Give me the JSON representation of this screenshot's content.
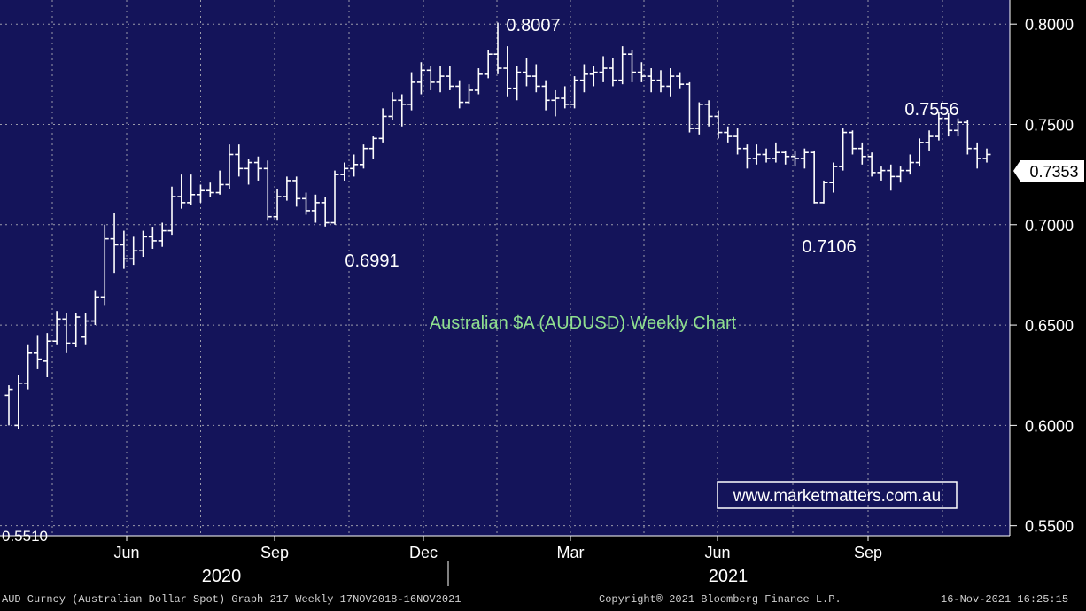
{
  "colors": {
    "plot_bg": "#14145a",
    "axis_bg": "#000000",
    "bars": "#ffffff",
    "grid": "#9a9aaa",
    "title": "#8fe08f",
    "watermark_border": "#ffffff",
    "last_label_bg": "#ffffff",
    "last_label_text": "#000000"
  },
  "chart_data": {
    "type": "ohlc",
    "title": "Australian $A (AUDUSD) Weekly Chart",
    "grid": true,
    "y_tick_labels": [
      "0.8000",
      "0.7500",
      "0.7000",
      "0.6500",
      "0.6000",
      "0.5500"
    ],
    "y_ticks": [
      0.8,
      0.75,
      0.7,
      0.65,
      0.6,
      0.55
    ],
    "ylim": [
      0.545,
      0.812
    ],
    "x_tick_labels": [
      "Jun",
      "Sep",
      "Dec",
      "Mar",
      "Jun",
      "Sep"
    ],
    "year_labels": [
      "2020",
      "2021"
    ],
    "last_price": "0.7353",
    "low_edge_label": "0.5510",
    "annotations": [
      {
        "text": "0.8007",
        "value": 0.8007
      },
      {
        "text": "0.7556",
        "value": 0.7556
      },
      {
        "text": "0.6991",
        "value": 0.6991
      },
      {
        "text": "0.7106",
        "value": 0.7106
      }
    ],
    "weeks": [
      {
        "o": 0.615,
        "h": 0.62,
        "l": 0.6,
        "c": 0.618
      },
      {
        "o": 0.6,
        "h": 0.625,
        "l": 0.598,
        "c": 0.621
      },
      {
        "o": 0.621,
        "h": 0.64,
        "l": 0.618,
        "c": 0.636
      },
      {
        "o": 0.636,
        "h": 0.645,
        "l": 0.628,
        "c": 0.633
      },
      {
        "o": 0.632,
        "h": 0.646,
        "l": 0.624,
        "c": 0.642
      },
      {
        "o": 0.642,
        "h": 0.657,
        "l": 0.64,
        "c": 0.653
      },
      {
        "o": 0.653,
        "h": 0.656,
        "l": 0.636,
        "c": 0.641
      },
      {
        "o": 0.641,
        "h": 0.656,
        "l": 0.639,
        "c": 0.654
      },
      {
        "o": 0.644,
        "h": 0.656,
        "l": 0.64,
        "c": 0.652
      },
      {
        "o": 0.652,
        "h": 0.667,
        "l": 0.65,
        "c": 0.664
      },
      {
        "o": 0.664,
        "h": 0.7,
        "l": 0.66,
        "c": 0.693
      },
      {
        "o": 0.693,
        "h": 0.706,
        "l": 0.676,
        "c": 0.69
      },
      {
        "o": 0.69,
        "h": 0.697,
        "l": 0.678,
        "c": 0.683
      },
      {
        "o": 0.683,
        "h": 0.694,
        "l": 0.68,
        "c": 0.687
      },
      {
        "o": 0.687,
        "h": 0.697,
        "l": 0.684,
        "c": 0.694
      },
      {
        "o": 0.694,
        "h": 0.699,
        "l": 0.688,
        "c": 0.692
      },
      {
        "o": 0.692,
        "h": 0.701,
        "l": 0.689,
        "c": 0.697
      },
      {
        "o": 0.697,
        "h": 0.719,
        "l": 0.695,
        "c": 0.714
      },
      {
        "o": 0.714,
        "h": 0.725,
        "l": 0.708,
        "c": 0.711
      },
      {
        "o": 0.711,
        "h": 0.725,
        "l": 0.71,
        "c": 0.715
      },
      {
        "o": 0.715,
        "h": 0.72,
        "l": 0.711,
        "c": 0.717
      },
      {
        "o": 0.717,
        "h": 0.721,
        "l": 0.714,
        "c": 0.716
      },
      {
        "o": 0.716,
        "h": 0.727,
        "l": 0.715,
        "c": 0.72
      },
      {
        "o": 0.72,
        "h": 0.74,
        "l": 0.718,
        "c": 0.735
      },
      {
        "o": 0.735,
        "h": 0.74,
        "l": 0.724,
        "c": 0.728
      },
      {
        "o": 0.728,
        "h": 0.733,
        "l": 0.72,
        "c": 0.731
      },
      {
        "o": 0.731,
        "h": 0.734,
        "l": 0.722,
        "c": 0.728
      },
      {
        "o": 0.728,
        "h": 0.732,
        "l": 0.702,
        "c": 0.704
      },
      {
        "o": 0.704,
        "h": 0.718,
        "l": 0.702,
        "c": 0.714
      },
      {
        "o": 0.714,
        "h": 0.724,
        "l": 0.712,
        "c": 0.722
      },
      {
        "o": 0.722,
        "h": 0.724,
        "l": 0.709,
        "c": 0.713
      },
      {
        "o": 0.713,
        "h": 0.716,
        "l": 0.705,
        "c": 0.707
      },
      {
        "o": 0.707,
        "h": 0.715,
        "l": 0.701,
        "c": 0.711
      },
      {
        "o": 0.711,
        "h": 0.714,
        "l": 0.6991,
        "c": 0.701
      },
      {
        "o": 0.701,
        "h": 0.727,
        "l": 0.7,
        "c": 0.725
      },
      {
        "o": 0.725,
        "h": 0.731,
        "l": 0.722,
        "c": 0.728
      },
      {
        "o": 0.728,
        "h": 0.735,
        "l": 0.724,
        "c": 0.73
      },
      {
        "o": 0.73,
        "h": 0.74,
        "l": 0.728,
        "c": 0.738
      },
      {
        "o": 0.738,
        "h": 0.744,
        "l": 0.733,
        "c": 0.743
      },
      {
        "o": 0.743,
        "h": 0.758,
        "l": 0.741,
        "c": 0.754
      },
      {
        "o": 0.754,
        "h": 0.766,
        "l": 0.752,
        "c": 0.762
      },
      {
        "o": 0.762,
        "h": 0.765,
        "l": 0.749,
        "c": 0.76
      },
      {
        "o": 0.76,
        "h": 0.776,
        "l": 0.757,
        "c": 0.771
      },
      {
        "o": 0.771,
        "h": 0.781,
        "l": 0.765,
        "c": 0.777
      },
      {
        "o": 0.777,
        "h": 0.779,
        "l": 0.767,
        "c": 0.771
      },
      {
        "o": 0.771,
        "h": 0.779,
        "l": 0.766,
        "c": 0.774
      },
      {
        "o": 0.774,
        "h": 0.779,
        "l": 0.767,
        "c": 0.769
      },
      {
        "o": 0.769,
        "h": 0.772,
        "l": 0.758,
        "c": 0.761
      },
      {
        "o": 0.761,
        "h": 0.77,
        "l": 0.76,
        "c": 0.767
      },
      {
        "o": 0.767,
        "h": 0.778,
        "l": 0.765,
        "c": 0.775
      },
      {
        "o": 0.775,
        "h": 0.787,
        "l": 0.773,
        "c": 0.785
      },
      {
        "o": 0.785,
        "h": 0.8007,
        "l": 0.775,
        "c": 0.778
      },
      {
        "o": 0.778,
        "h": 0.789,
        "l": 0.764,
        "c": 0.768
      },
      {
        "o": 0.768,
        "h": 0.779,
        "l": 0.762,
        "c": 0.776
      },
      {
        "o": 0.776,
        "h": 0.783,
        "l": 0.769,
        "c": 0.774
      },
      {
        "o": 0.774,
        "h": 0.78,
        "l": 0.766,
        "c": 0.769
      },
      {
        "o": 0.769,
        "h": 0.772,
        "l": 0.757,
        "c": 0.762
      },
      {
        "o": 0.762,
        "h": 0.767,
        "l": 0.754,
        "c": 0.763
      },
      {
        "o": 0.763,
        "h": 0.769,
        "l": 0.758,
        "c": 0.76
      },
      {
        "o": 0.76,
        "h": 0.774,
        "l": 0.758,
        "c": 0.772
      },
      {
        "o": 0.772,
        "h": 0.78,
        "l": 0.766,
        "c": 0.775
      },
      {
        "o": 0.775,
        "h": 0.779,
        "l": 0.769,
        "c": 0.776
      },
      {
        "o": 0.776,
        "h": 0.784,
        "l": 0.771,
        "c": 0.778
      },
      {
        "o": 0.778,
        "h": 0.783,
        "l": 0.769,
        "c": 0.772
      },
      {
        "o": 0.772,
        "h": 0.789,
        "l": 0.77,
        "c": 0.785
      },
      {
        "o": 0.785,
        "h": 0.787,
        "l": 0.771,
        "c": 0.776
      },
      {
        "o": 0.776,
        "h": 0.781,
        "l": 0.771,
        "c": 0.774
      },
      {
        "o": 0.774,
        "h": 0.778,
        "l": 0.766,
        "c": 0.772
      },
      {
        "o": 0.772,
        "h": 0.777,
        "l": 0.766,
        "c": 0.769
      },
      {
        "o": 0.769,
        "h": 0.778,
        "l": 0.764,
        "c": 0.774
      },
      {
        "o": 0.774,
        "h": 0.776,
        "l": 0.768,
        "c": 0.77
      },
      {
        "o": 0.77,
        "h": 0.771,
        "l": 0.746,
        "c": 0.748
      },
      {
        "o": 0.748,
        "h": 0.761,
        "l": 0.745,
        "c": 0.76
      },
      {
        "o": 0.76,
        "h": 0.762,
        "l": 0.749,
        "c": 0.754
      },
      {
        "o": 0.754,
        "h": 0.757,
        "l": 0.743,
        "c": 0.746
      },
      {
        "o": 0.746,
        "h": 0.749,
        "l": 0.741,
        "c": 0.744
      },
      {
        "o": 0.744,
        "h": 0.748,
        "l": 0.735,
        "c": 0.738
      },
      {
        "o": 0.738,
        "h": 0.74,
        "l": 0.728,
        "c": 0.733
      },
      {
        "o": 0.733,
        "h": 0.74,
        "l": 0.73,
        "c": 0.735
      },
      {
        "o": 0.735,
        "h": 0.738,
        "l": 0.731,
        "c": 0.733
      },
      {
        "o": 0.733,
        "h": 0.741,
        "l": 0.731,
        "c": 0.736
      },
      {
        "o": 0.736,
        "h": 0.737,
        "l": 0.73,
        "c": 0.734
      },
      {
        "o": 0.734,
        "h": 0.737,
        "l": 0.729,
        "c": 0.733
      },
      {
        "o": 0.733,
        "h": 0.738,
        "l": 0.728,
        "c": 0.736
      },
      {
        "o": 0.736,
        "h": 0.737,
        "l": 0.7106,
        "c": 0.711
      },
      {
        "o": 0.711,
        "h": 0.722,
        "l": 0.7106,
        "c": 0.721
      },
      {
        "o": 0.721,
        "h": 0.731,
        "l": 0.716,
        "c": 0.729
      },
      {
        "o": 0.729,
        "h": 0.748,
        "l": 0.727,
        "c": 0.746
      },
      {
        "o": 0.746,
        "h": 0.747,
        "l": 0.735,
        "c": 0.738
      },
      {
        "o": 0.738,
        "h": 0.741,
        "l": 0.73,
        "c": 0.734
      },
      {
        "o": 0.734,
        "h": 0.736,
        "l": 0.724,
        "c": 0.726
      },
      {
        "o": 0.726,
        "h": 0.729,
        "l": 0.722,
        "c": 0.727
      },
      {
        "o": 0.727,
        "h": 0.73,
        "l": 0.717,
        "c": 0.724
      },
      {
        "o": 0.724,
        "h": 0.729,
        "l": 0.721,
        "c": 0.727
      },
      {
        "o": 0.727,
        "h": 0.735,
        "l": 0.725,
        "c": 0.731
      },
      {
        "o": 0.731,
        "h": 0.743,
        "l": 0.729,
        "c": 0.741
      },
      {
        "o": 0.741,
        "h": 0.747,
        "l": 0.737,
        "c": 0.744
      },
      {
        "o": 0.744,
        "h": 0.756,
        "l": 0.742,
        "c": 0.753
      },
      {
        "o": 0.753,
        "h": 0.7556,
        "l": 0.744,
        "c": 0.747
      },
      {
        "o": 0.747,
        "h": 0.753,
        "l": 0.744,
        "c": 0.751
      },
      {
        "o": 0.751,
        "h": 0.752,
        "l": 0.735,
        "c": 0.738
      },
      {
        "o": 0.738,
        "h": 0.741,
        "l": 0.728,
        "c": 0.733
      },
      {
        "o": 0.733,
        "h": 0.738,
        "l": 0.731,
        "c": 0.735
      }
    ]
  },
  "watermark": "www.marketmatters.com.au",
  "footer": {
    "left": "AUD Curncy (Australian Dollar Spot) Graph 217  Weekly 17NOV2018-16NOV2021",
    "center": "Copyright® 2021 Bloomberg Finance L.P.",
    "right": "16-Nov-2021 16:25:15"
  }
}
